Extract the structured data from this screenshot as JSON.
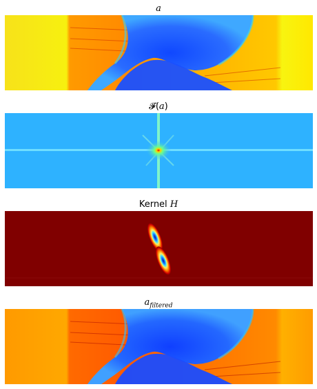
{
  "panels": [
    {
      "id": "a",
      "title_prefix": "",
      "title_var": "a",
      "title_sub": "",
      "title_suffix": ""
    },
    {
      "id": "fa",
      "title_prefix": "𝓕(",
      "title_var": "a",
      "title_sub": "",
      "title_suffix": ")"
    },
    {
      "id": "kernel",
      "title_prefix": "Kernel ",
      "title_var": "H",
      "title_sub": "",
      "title_suffix": ""
    },
    {
      "id": "af",
      "title_prefix": "",
      "title_var": "a",
      "title_sub": "filtered",
      "title_suffix": ""
    }
  ],
  "colormap": "jet",
  "colors": {
    "jet_yellow": "#f4f10e",
    "jet_orange": "#ff7a00",
    "jet_red": "#c40000",
    "jet_darkred": "#800000",
    "jet_blue": "#1a4cff",
    "jet_cyan": "#1ec8ff",
    "jet_lightblue": "#34b4ff"
  }
}
